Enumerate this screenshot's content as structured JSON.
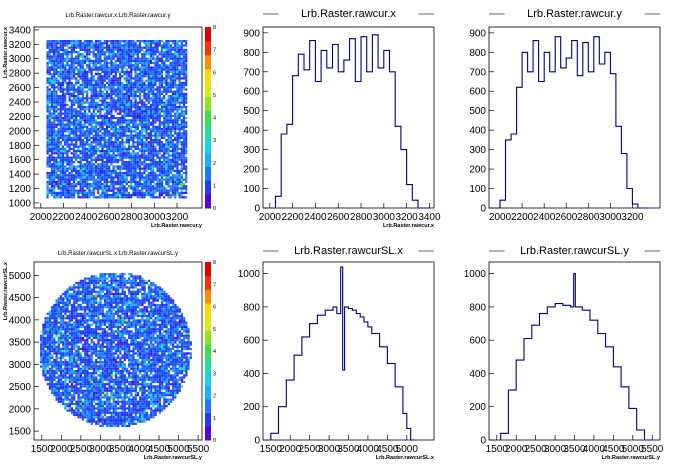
{
  "chart_data": [
    {
      "type": "heatmap",
      "title": "Lrb.Raster.rawcur.x:Lrb.Raster.rawcur.y",
      "xlabel": "Lrb.Raster.rawcur.y",
      "ylabel": "Lrb.Raster.rawcur.x",
      "xlim": [
        1940,
        3420
      ],
      "ylim": [
        930,
        3440
      ],
      "x_ticks": [
        "2000",
        "2200",
        "2400",
        "2600",
        "2800",
        "3000",
        "3200"
      ],
      "y_ticks": [
        "1000",
        "1200",
        "1400",
        "1600",
        "1800",
        "2000",
        "2200",
        "2400",
        "2600",
        "2800",
        "3000",
        "3200",
        "3400"
      ],
      "fill_region": {
        "shape": "rectangle",
        "x_range": [
          2050,
          3280
        ],
        "y_range": [
          1080,
          3260
        ]
      },
      "colorbar": {
        "min": 0,
        "max": 8,
        "ticks": [
          "0",
          "1",
          "2",
          "3",
          "4",
          "5",
          "6",
          "7",
          "8"
        ]
      },
      "grid": false
    },
    {
      "type": "step",
      "title": "Lrb.Raster.rawcur.x",
      "xlabel": "Lrb.Raster.rawcur.x",
      "xlim": [
        1940,
        3440
      ],
      "ylim": [
        0,
        930
      ],
      "x_ticks": [
        "2000",
        "2200",
        "2400",
        "2600",
        "2800",
        "3000",
        "3200",
        "3400"
      ],
      "y_ticks": [
        "0",
        "100",
        "200",
        "300",
        "400",
        "500",
        "600",
        "700",
        "800",
        "900"
      ],
      "x": [
        2000,
        2050,
        2100,
        2150,
        2200,
        2250,
        2300,
        2350,
        2400,
        2450,
        2500,
        2550,
        2600,
        2650,
        2700,
        2750,
        2800,
        2850,
        2900,
        2950,
        3000,
        3050,
        3100,
        3150,
        3200,
        3250,
        3300,
        3350
      ],
      "values": [
        0,
        60,
        380,
        430,
        680,
        790,
        710,
        860,
        650,
        810,
        720,
        840,
        700,
        760,
        870,
        650,
        880,
        700,
        890,
        720,
        810,
        700,
        420,
        300,
        120,
        40,
        0,
        0
      ]
    },
    {
      "type": "step",
      "title": "Lrb.Raster.rawcur.y",
      "xlabel": "",
      "xlim": [
        1900,
        3450
      ],
      "ylim": [
        0,
        930
      ],
      "x_ticks": [
        "2000",
        "2200",
        "2400",
        "2600",
        "2800",
        "3000",
        "3200"
      ],
      "y_ticks": [
        "0",
        "100",
        "200",
        "300",
        "400",
        "500",
        "600",
        "700",
        "800",
        "900"
      ],
      "x": [
        1950,
        2000,
        2050,
        2100,
        2150,
        2200,
        2250,
        2300,
        2350,
        2400,
        2450,
        2500,
        2550,
        2600,
        2650,
        2700,
        2750,
        2800,
        2850,
        2900,
        2950,
        3000,
        3050,
        3100,
        3150,
        3200,
        3250,
        3300
      ],
      "values": [
        0,
        40,
        350,
        380,
        620,
        800,
        700,
        860,
        650,
        800,
        700,
        880,
        720,
        770,
        860,
        680,
        850,
        700,
        880,
        740,
        800,
        690,
        420,
        280,
        100,
        20,
        0,
        0
      ]
    },
    {
      "type": "heatmap",
      "title": "Lrb.Raster.rawcurSL.x:Lrb.Raster.rawcurSL.y",
      "xlabel": "Lrb.Raster.rawcurSL.y",
      "ylabel": "Lrb.Raster.rawcurSL.x",
      "xlim": [
        1300,
        5600
      ],
      "ylim": [
        1300,
        5300
      ],
      "x_ticks": [
        "1500",
        "2000",
        "2500",
        "3000",
        "3500",
        "4000",
        "4500",
        "5000",
        "5500"
      ],
      "y_ticks": [
        "1500",
        "2000",
        "2500",
        "3000",
        "3500",
        "4000",
        "4500",
        "5000"
      ],
      "fill_region": {
        "shape": "ellipse",
        "center": [
          3350,
          3350
        ],
        "radius": [
          1950,
          1750
        ]
      },
      "colorbar": {
        "min": 0,
        "max": 8,
        "ticks": [
          "0",
          "1",
          "2",
          "3",
          "4",
          "5",
          "6",
          "7",
          "8"
        ]
      },
      "grid": false
    },
    {
      "type": "step",
      "title": "Lrb.Raster.rawcurSL.x",
      "xlabel": "Lrb.Raster.rawcurSL.x",
      "xlim": [
        1300,
        5700
      ],
      "ylim": [
        0,
        1070
      ],
      "x_ticks": [
        "1500",
        "2000",
        "2500",
        "3000",
        "3500",
        "4000",
        "4500",
        "5000"
      ],
      "y_ticks": [
        "0",
        "200",
        "400",
        "600",
        "800",
        "1000"
      ],
      "x": [
        1500,
        1700,
        1900,
        2100,
        2300,
        2500,
        2700,
        2900,
        3100,
        3200,
        3300,
        3350,
        3400,
        3500,
        3600,
        3700,
        3800,
        3900,
        4000,
        4100,
        4300,
        4500,
        4700,
        4900,
        5000,
        5100
      ],
      "values": [
        40,
        200,
        360,
        510,
        620,
        700,
        750,
        780,
        800,
        760,
        1040,
        420,
        800,
        790,
        780,
        760,
        740,
        710,
        680,
        640,
        560,
        460,
        320,
        160,
        70,
        0
      ]
    },
    {
      "type": "step",
      "title": "Lrb.Raster.rawcurSL.y",
      "xlabel": "Lrb.Raster.rawcurSL.y",
      "xlim": [
        1300,
        5700
      ],
      "ylim": [
        0,
        1070
      ],
      "x_ticks": [
        "1500",
        "2000",
        "2500",
        "3000",
        "3500",
        "4000",
        "4500",
        "5000",
        "5500"
      ],
      "y_ticks": [
        "0",
        "200",
        "400",
        "600",
        "800",
        "1000"
      ],
      "x": [
        1600,
        1800,
        2000,
        2200,
        2400,
        2600,
        2800,
        3000,
        3200,
        3400,
        3480,
        3520,
        3700,
        3900,
        4100,
        4300,
        4500,
        4700,
        4900,
        5100,
        5300
      ],
      "values": [
        40,
        300,
        480,
        610,
        690,
        760,
        800,
        820,
        810,
        800,
        1000,
        800,
        780,
        720,
        640,
        560,
        440,
        320,
        190,
        60,
        0
      ]
    }
  ]
}
